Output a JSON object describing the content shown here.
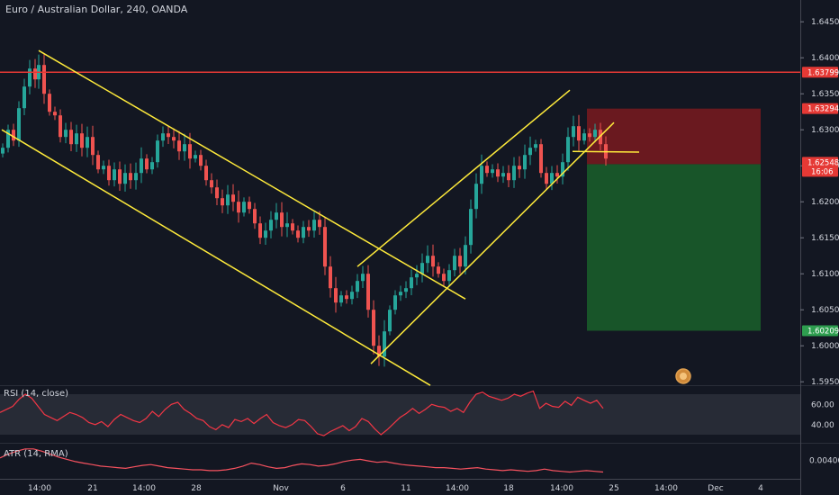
{
  "title": "Euro / Australian Dollar, 240, OANDA",
  "rsi_label": "RSI (14, close)",
  "atr_label": "ATR (14, RMA)",
  "chart_data": [
    {
      "type": "candlestick",
      "symbol": "EURAUD",
      "interval": "240",
      "price_ticks": [
        "1.64500",
        "1.64000",
        "1.63500",
        "1.63000",
        "1.62500",
        "1.62000",
        "1.61500",
        "1.61000",
        "1.60500",
        "1.60000",
        "1.59500"
      ],
      "price_tick_values": [
        1.645,
        1.64,
        1.635,
        1.63,
        1.625,
        1.62,
        1.615,
        1.61,
        1.605,
        1.6,
        1.595
      ],
      "ylim": [
        1.593,
        1.6475
      ],
      "x_ticks": [
        "14:00",
        "21",
        "14:00",
        "28",
        "Nov",
        "6",
        "11",
        "14:00",
        "18",
        "14:00",
        "25",
        "14:00",
        "Dec",
        "4"
      ],
      "close_path": [
        [
          0,
          1.6275
        ],
        [
          6,
          1.63
        ],
        [
          12,
          1.6285
        ],
        [
          18,
          1.633
        ],
        [
          24,
          1.636
        ],
        [
          30,
          1.6385
        ],
        [
          36,
          1.637
        ],
        [
          40,
          1.639
        ],
        [
          46,
          1.635
        ],
        [
          52,
          1.6325
        ],
        [
          58,
          1.632
        ],
        [
          64,
          1.629
        ],
        [
          70,
          1.63
        ],
        [
          76,
          1.628
        ],
        [
          82,
          1.6295
        ],
        [
          88,
          1.6275
        ],
        [
          94,
          1.629
        ],
        [
          100,
          1.6265
        ],
        [
          106,
          1.6245
        ],
        [
          112,
          1.625
        ],
        [
          118,
          1.623
        ],
        [
          124,
          1.6245
        ],
        [
          130,
          1.6225
        ],
        [
          136,
          1.624
        ],
        [
          142,
          1.623
        ],
        [
          148,
          1.624
        ],
        [
          154,
          1.626
        ],
        [
          160,
          1.6245
        ],
        [
          166,
          1.6255
        ],
        [
          172,
          1.6285
        ],
        [
          178,
          1.6295
        ],
        [
          184,
          1.629
        ],
        [
          190,
          1.6285
        ],
        [
          196,
          1.627
        ],
        [
          202,
          1.628
        ],
        [
          208,
          1.626
        ],
        [
          214,
          1.6265
        ],
        [
          220,
          1.625
        ],
        [
          226,
          1.623
        ],
        [
          232,
          1.622
        ],
        [
          238,
          1.6205
        ],
        [
          244,
          1.6195
        ],
        [
          250,
          1.621
        ],
        [
          256,
          1.62
        ],
        [
          262,
          1.6185
        ],
        [
          268,
          1.62
        ],
        [
          274,
          1.619
        ],
        [
          280,
          1.617
        ],
        [
          286,
          1.615
        ],
        [
          292,
          1.616
        ],
        [
          298,
          1.6175
        ],
        [
          304,
          1.6185
        ],
        [
          310,
          1.6165
        ],
        [
          316,
          1.617
        ],
        [
          322,
          1.616
        ],
        [
          328,
          1.615
        ],
        [
          334,
          1.6165
        ],
        [
          340,
          1.616
        ],
        [
          346,
          1.6175
        ],
        [
          352,
          1.6165
        ],
        [
          358,
          1.611
        ],
        [
          364,
          1.608
        ],
        [
          370,
          1.606
        ],
        [
          376,
          1.607
        ],
        [
          382,
          1.6065
        ],
        [
          388,
          1.6075
        ],
        [
          394,
          1.609
        ],
        [
          400,
          1.61
        ],
        [
          406,
          1.605
        ],
        [
          412,
          1.6
        ],
        [
          418,
          1.5985
        ],
        [
          424,
          1.602
        ],
        [
          430,
          1.605
        ],
        [
          436,
          1.607
        ],
        [
          442,
          1.6075
        ],
        [
          448,
          1.608
        ],
        [
          454,
          1.6095
        ],
        [
          460,
          1.61
        ],
        [
          466,
          1.6115
        ],
        [
          472,
          1.6125
        ],
        [
          478,
          1.611
        ],
        [
          484,
          1.61
        ],
        [
          490,
          1.609
        ],
        [
          496,
          1.6105
        ],
        [
          502,
          1.6125
        ],
        [
          508,
          1.611
        ],
        [
          514,
          1.614
        ],
        [
          520,
          1.619
        ],
        [
          526,
          1.6225
        ],
        [
          532,
          1.625
        ],
        [
          538,
          1.624
        ],
        [
          544,
          1.6245
        ],
        [
          550,
          1.6235
        ],
        [
          556,
          1.624
        ],
        [
          562,
          1.623
        ],
        [
          568,
          1.625
        ],
        [
          574,
          1.6245
        ],
        [
          580,
          1.6265
        ],
        [
          586,
          1.6275
        ],
        [
          592,
          1.628
        ],
        [
          598,
          1.624
        ],
        [
          604,
          1.6225
        ],
        [
          610,
          1.624
        ],
        [
          616,
          1.6235
        ],
        [
          622,
          1.6255
        ],
        [
          628,
          1.629
        ],
        [
          634,
          1.6305
        ],
        [
          640,
          1.6285
        ],
        [
          646,
          1.6295
        ],
        [
          652,
          1.629
        ],
        [
          658,
          1.63
        ],
        [
          664,
          1.628
        ],
        [
          670,
          1.626
        ]
      ],
      "annotations": {
        "resistance_level": 1.63799,
        "stop_level": 1.63294,
        "current_price": 1.62548,
        "countdown": "16:06",
        "entry_level": 1.62522,
        "target_level": 1.60209
      },
      "colors": {
        "up": "#26a69a",
        "down": "#ef5350",
        "resistance": "#e53935",
        "trendlines": "#ffeb3b",
        "stop_zone": "#7a1a1f",
        "target_zone": "#1a5c2a"
      }
    },
    {
      "type": "line",
      "name": "RSI (14, close)",
      "y_ticks": [
        "60.00",
        "40.00"
      ],
      "y_tick_values": [
        60,
        40
      ],
      "band": [
        30,
        70
      ],
      "ylim": [
        22,
        78
      ],
      "series": [
        {
          "values": [
            52,
            55,
            58,
            65,
            70,
            66,
            58,
            50,
            47,
            44,
            48,
            52,
            50,
            47,
            42,
            40,
            43,
            38,
            45,
            50,
            47,
            44,
            42,
            46,
            53,
            48,
            55,
            60,
            62,
            55,
            51,
            46,
            44,
            38,
            35,
            40,
            37,
            45,
            43,
            46,
            41,
            46,
            50,
            42,
            39,
            37,
            40,
            45,
            44,
            38,
            31,
            29,
            33,
            36,
            39,
            34,
            38,
            46,
            43,
            36,
            30,
            35,
            41,
            47,
            51,
            56,
            51,
            55,
            60,
            58,
            57,
            53,
            56,
            52,
            62,
            70,
            72,
            68,
            66,
            64,
            66,
            70,
            68,
            71,
            73,
            56,
            61,
            58,
            57,
            63,
            59,
            67,
            64,
            61,
            64,
            56
          ]
        }
      ],
      "color": "#f23645"
    },
    {
      "type": "line",
      "name": "ATR (14, RMA)",
      "y_ticks": [
        "0.00400"
      ],
      "y_tick_values": [
        0.004
      ],
      "ylim": [
        0.0015,
        0.0062
      ],
      "series": [
        {
          "values": [
            0.0043,
            0.0048,
            0.0052,
            0.0055,
            0.0055,
            0.0052,
            0.0048,
            0.0044,
            0.0041,
            0.0038,
            0.0036,
            0.0034,
            0.0032,
            0.0031,
            0.003,
            0.0029,
            0.0031,
            0.0033,
            0.0034,
            0.0032,
            0.003,
            0.0029,
            0.0028,
            0.0027,
            0.0027,
            0.0026,
            0.0026,
            0.0027,
            0.0029,
            0.0032,
            0.0036,
            0.0034,
            0.0031,
            0.0029,
            0.003,
            0.0033,
            0.0035,
            0.0034,
            0.0032,
            0.0033,
            0.0035,
            0.0038,
            0.004,
            0.0041,
            0.0039,
            0.0037,
            0.0038,
            0.0036,
            0.0034,
            0.0033,
            0.0032,
            0.0031,
            0.003,
            0.003,
            0.0029,
            0.0028,
            0.0029,
            0.003,
            0.0028,
            0.0027,
            0.0026,
            0.0027,
            0.0026,
            0.0025,
            0.0026,
            0.0028,
            0.0026,
            0.0025,
            0.0024,
            0.0025,
            0.0026,
            0.0025,
            0.0024
          ]
        }
      ],
      "color": "#f7525f"
    }
  ]
}
